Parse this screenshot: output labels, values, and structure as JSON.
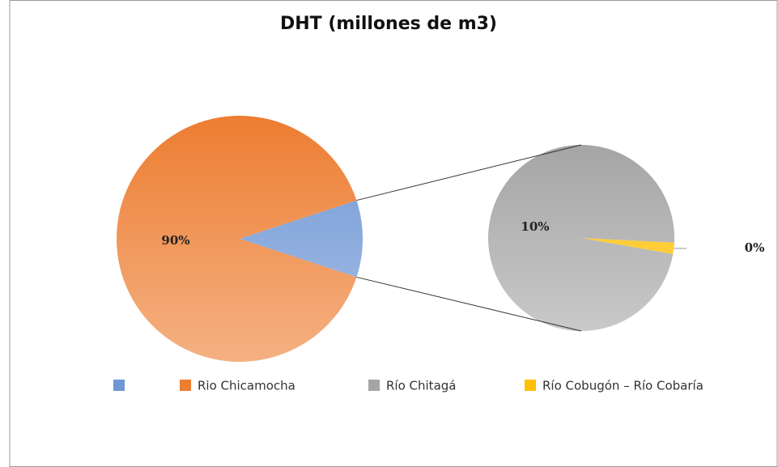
{
  "chart_data": {
    "type": "pie-of-pie",
    "title": "DHT (millones de m3)",
    "categories": [
      "Rio Chicamocha",
      "Río Chitagá",
      "Río Cobugón – Río Cobaría"
    ],
    "values": [
      89.9,
      9.9,
      0.2
    ],
    "value_labels": [
      "90%",
      "10%",
      "0%"
    ],
    "colors": [
      "#ed7d31",
      "#a5a5a5",
      "#ffc000"
    ],
    "split": 2,
    "other": {
      "name": null,
      "color": "#6f97d5"
    }
  }
}
